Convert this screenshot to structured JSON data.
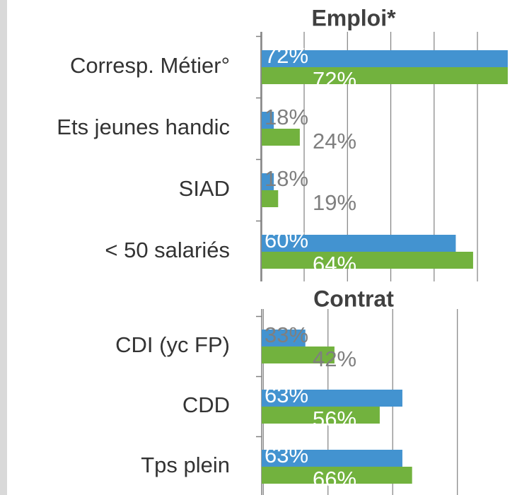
{
  "chart_data": [
    {
      "type": "bar",
      "orientation": "horizontal",
      "title": "Emploi*",
      "categories": [
        "Corresp. Métier°",
        "Ets jeunes handic",
        "SIAD",
        "< 50 salariés"
      ],
      "series": [
        {
          "color": "#4393d0",
          "values": [
            72,
            18,
            18,
            60
          ],
          "value_labels": [
            "72%",
            "18%",
            "18%",
            "60%"
          ]
        },
        {
          "color": "#72b23e",
          "values": [
            72,
            24,
            19,
            64
          ],
          "value_labels": [
            "72%",
            "24%",
            "19%",
            "64%"
          ]
        }
      ],
      "xlim": [
        15.2,
        72.5
      ],
      "xticks": [
        15,
        25,
        35,
        45,
        55,
        65
      ],
      "grid": true
    },
    {
      "type": "bar",
      "orientation": "horizontal",
      "title": "Contrat",
      "categories": [
        "CDI (yc FP)",
        "CDD",
        "Tps plein"
      ],
      "series": [
        {
          "color": "#4393d0",
          "values": [
            33,
            63,
            63
          ],
          "value_labels": [
            "33%",
            "63%",
            "63%"
          ]
        },
        {
          "color": "#72b23e",
          "values": [
            42,
            56,
            66
          ],
          "value_labels": [
            "42%",
            "56%",
            "66%"
          ]
        }
      ],
      "xlim": [
        19.5,
        91
      ],
      "xticks": [
        20,
        40,
        60,
        80
      ],
      "grid": true
    }
  ]
}
